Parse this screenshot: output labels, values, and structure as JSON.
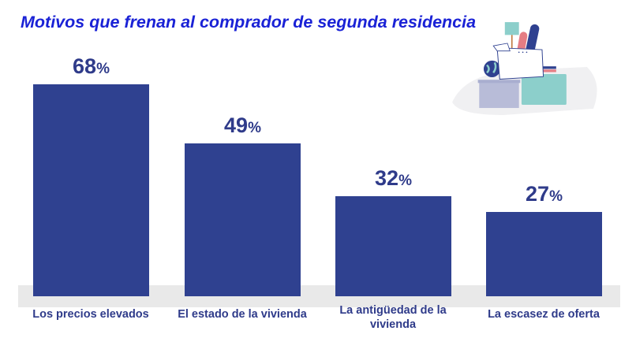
{
  "chart_data": {
    "type": "bar",
    "title": "Motivos que frenan al comprador de segunda residencia",
    "categories": [
      "Los precios elevados",
      "El estado de la vivienda",
      "La antigüedad de la vivienda",
      "La escasez de oferta"
    ],
    "values": [
      68,
      49,
      32,
      27
    ],
    "value_labels": [
      "68",
      "49",
      "32",
      "27"
    ],
    "unit": "%",
    "xlabel": "",
    "ylabel": "",
    "grid": false,
    "colors": {
      "bar": "#2f4190",
      "text": "#2f3b8a",
      "title": "#1a22d6",
      "band": "#e9e9e9"
    }
  },
  "illustration": "moving-boxes-illustration"
}
